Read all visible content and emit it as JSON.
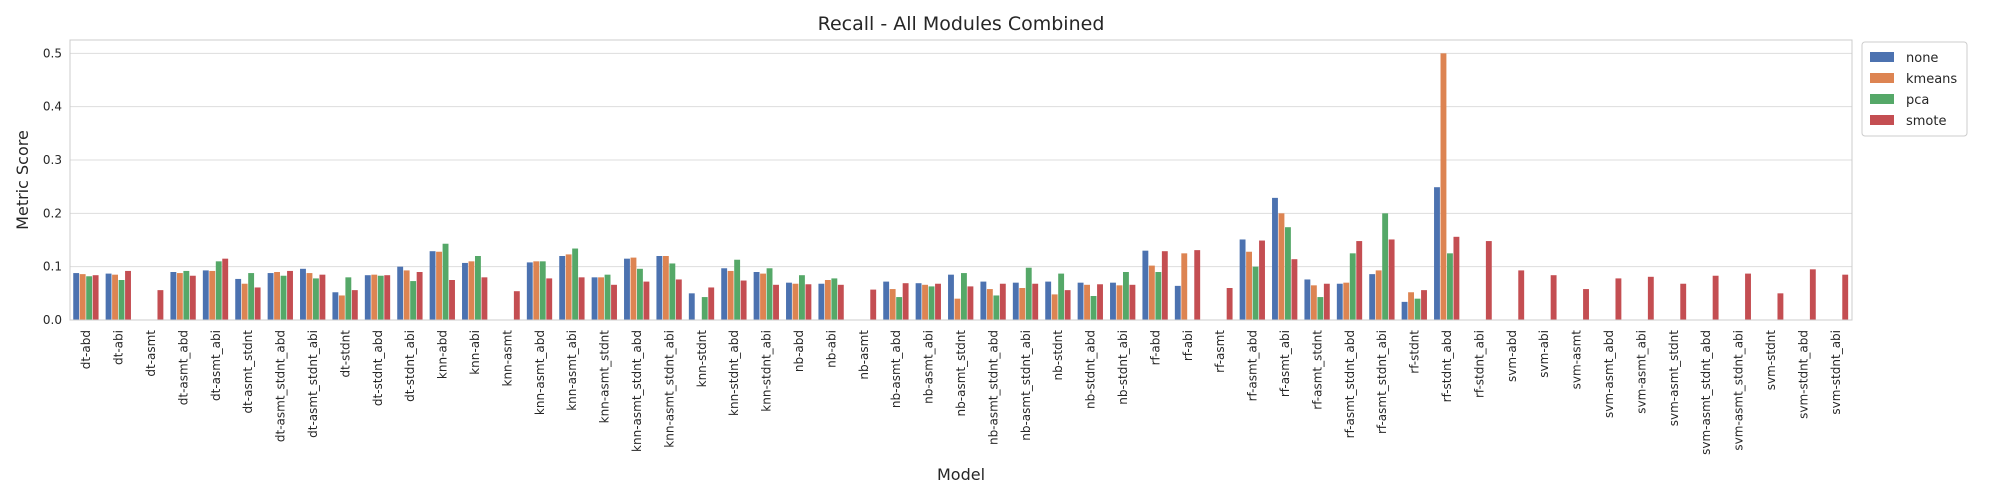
{
  "chart_data": {
    "type": "bar",
    "title": "Recall - All Modules Combined",
    "xlabel": "Model",
    "ylabel": "Metric Score",
    "ylim": [
      0,
      0.525
    ],
    "yticks": [
      0.0,
      0.1,
      0.2,
      0.3,
      0.4,
      0.5
    ],
    "ytick_labels": [
      "0.0",
      "0.1",
      "0.2",
      "0.3",
      "0.4",
      "0.5"
    ],
    "grid": true,
    "legend_position": "outside-top-right",
    "categories": [
      "dt-abd",
      "dt-abi",
      "dt-asmt",
      "dt-asmt_abd",
      "dt-asmt_abi",
      "dt-asmt_stdnt",
      "dt-asmt_stdnt_abd",
      "dt-asmt_stdnt_abi",
      "dt-stdnt",
      "dt-stdnt_abd",
      "dt-stdnt_abi",
      "knn-abd",
      "knn-abi",
      "knn-asmt",
      "knn-asmt_abd",
      "knn-asmt_abi",
      "knn-asmt_stdnt",
      "knn-asmt_stdnt_abd",
      "knn-asmt_stdnt_abi",
      "knn-stdnt",
      "knn-stdnt_abd",
      "knn-stdnt_abi",
      "nb-abd",
      "nb-abi",
      "nb-asmt",
      "nb-asmt_abd",
      "nb-asmt_abi",
      "nb-asmt_stdnt",
      "nb-asmt_stdnt_abd",
      "nb-asmt_stdnt_abi",
      "nb-stdnt",
      "nb-stdnt_abd",
      "nb-stdnt_abi",
      "rf-abd",
      "rf-abi",
      "rf-asmt",
      "rf-asmt_abd",
      "rf-asmt_abi",
      "rf-asmt_stdnt",
      "rf-asmt_stdnt_abd",
      "rf-asmt_stdnt_abi",
      "rf-stdnt",
      "rf-stdnt_abd",
      "rf-stdnt_abi",
      "svm-abd",
      "svm-abi",
      "svm-asmt",
      "svm-asmt_abd",
      "svm-asmt_abi",
      "svm-asmt_stdnt",
      "svm-asmt_stdnt_abd",
      "svm-asmt_stdnt_abi",
      "svm-stdnt",
      "svm-stdnt_abd",
      "svm-stdnt_abi"
    ],
    "series": [
      {
        "name": "none",
        "color": "#4c72b0",
        "values": [
          0.088,
          0.087,
          null,
          0.09,
          0.093,
          0.077,
          0.088,
          0.096,
          0.052,
          0.084,
          0.1,
          0.129,
          0.107,
          null,
          0.108,
          0.12,
          0.08,
          0.115,
          0.12,
          0.05,
          0.097,
          0.09,
          0.07,
          0.068,
          null,
          0.072,
          0.069,
          0.085,
          0.072,
          0.07,
          0.072,
          0.07,
          0.07,
          0.13,
          0.064,
          null,
          0.151,
          0.229,
          0.076,
          0.068,
          0.086,
          0.034,
          0.249,
          null,
          null,
          null,
          null,
          null,
          null,
          null,
          null,
          null,
          null,
          null,
          null
        ]
      },
      {
        "name": "kmeans",
        "color": "#dd8452",
        "values": [
          0.086,
          0.085,
          null,
          0.088,
          0.092,
          0.068,
          0.09,
          0.088,
          0.046,
          0.085,
          0.093,
          0.128,
          0.11,
          null,
          0.11,
          0.123,
          0.08,
          0.117,
          0.12,
          null,
          0.092,
          0.087,
          0.068,
          0.075,
          null,
          0.058,
          0.066,
          0.04,
          0.058,
          0.06,
          0.048,
          0.066,
          0.065,
          0.102,
          0.125,
          null,
          0.128,
          0.2,
          0.065,
          0.07,
          0.093,
          0.052,
          0.5,
          null,
          null,
          null,
          null,
          null,
          null,
          null,
          null,
          null,
          null,
          null,
          null
        ]
      },
      {
        "name": "pca",
        "color": "#55a868",
        "values": [
          0.082,
          0.075,
          null,
          0.092,
          0.11,
          0.088,
          0.083,
          0.078,
          0.08,
          0.083,
          0.073,
          0.143,
          0.12,
          null,
          0.11,
          0.134,
          0.085,
          0.096,
          0.106,
          0.043,
          0.113,
          0.097,
          0.084,
          0.078,
          null,
          0.043,
          0.063,
          0.088,
          0.046,
          0.098,
          0.087,
          0.045,
          0.09,
          0.09,
          null,
          null,
          0.1,
          0.174,
          0.043,
          0.125,
          0.2,
          0.04,
          0.125,
          null,
          null,
          null,
          null,
          null,
          null,
          null,
          null,
          null,
          null,
          null,
          null
        ]
      },
      {
        "name": "smote",
        "color": "#c44e52",
        "values": [
          0.084,
          0.092,
          0.056,
          0.083,
          0.115,
          0.061,
          0.092,
          0.085,
          0.056,
          0.084,
          0.09,
          0.075,
          0.08,
          0.054,
          0.078,
          0.08,
          0.066,
          0.072,
          0.076,
          0.061,
          0.074,
          0.066,
          0.067,
          0.066,
          0.057,
          0.069,
          0.068,
          0.063,
          0.068,
          0.068,
          0.056,
          0.067,
          0.066,
          0.129,
          0.131,
          0.06,
          0.149,
          0.114,
          0.068,
          0.148,
          0.151,
          0.056,
          0.156,
          0.148,
          0.093,
          0.084,
          0.058,
          0.078,
          0.081,
          0.068,
          0.083,
          0.087,
          0.05,
          0.095,
          0.085
        ]
      }
    ]
  }
}
